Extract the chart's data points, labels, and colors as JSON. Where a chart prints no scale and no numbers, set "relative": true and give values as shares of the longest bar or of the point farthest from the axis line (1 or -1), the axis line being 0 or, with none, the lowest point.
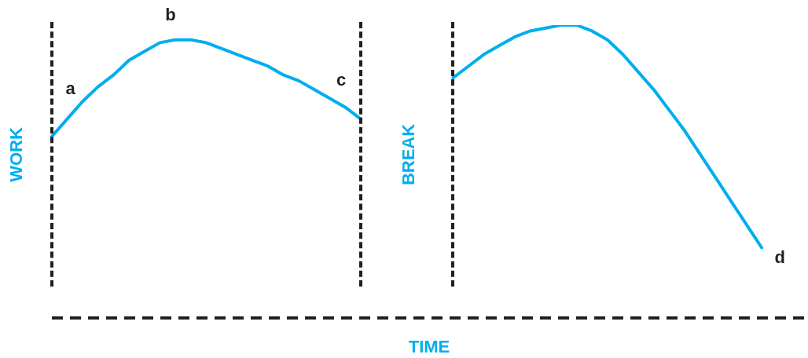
{
  "chart_data": {
    "type": "line",
    "relative": true,
    "ylabel": "WORK",
    "xlabel": "TIME",
    "legend": false,
    "marker": "none",
    "line_style": "solid",
    "categories": [
      null,
      null,
      null,
      null,
      null,
      null,
      null,
      null,
      null,
      null,
      null,
      null,
      null,
      null,
      null,
      null,
      null,
      null,
      null,
      null,
      null,
      null,
      null,
      null,
      null,
      null,
      null,
      null,
      null,
      null,
      null,
      null,
      null,
      null,
      null,
      null,
      null,
      null,
      null,
      null,
      null,
      null,
      null,
      null,
      null,
      null,
      null,
      null,
      null,
      null
    ],
    "series": [
      {
        "color": "#00aeef",
        "values": [
          0.62,
          0.68,
          0.74,
          0.79,
          0.83,
          0.88,
          0.91,
          0.94,
          0.95,
          0.95,
          0.94,
          0.92,
          0.9,
          0.88,
          0.86,
          0.83,
          0.81,
          0.78,
          0.75,
          0.72,
          0.68,
          null,
          null,
          null,
          null,
          null,
          null,
          null,
          null,
          null,
          null,
          null,
          null,
          null,
          null,
          null,
          null,
          null,
          null,
          null,
          null,
          null,
          null,
          null,
          null,
          null,
          null,
          null,
          null,
          null
        ]
      },
      {
        "color": "#00aeef",
        "values": [
          null,
          null,
          null,
          null,
          null,
          null,
          null,
          null,
          null,
          null,
          null,
          null,
          null,
          null,
          null,
          null,
          null,
          null,
          null,
          null,
          null,
          null,
          null,
          null,
          null,
          null,
          0.82,
          0.86,
          0.9,
          0.93,
          0.96,
          0.98,
          0.99,
          1.0,
          1.0,
          0.98,
          0.95,
          0.9,
          0.84,
          0.78,
          0.71,
          0.64,
          0.56,
          0.48,
          0.4,
          0.32,
          0.24,
          null,
          null,
          null
        ]
      }
    ],
    "annotations": [
      "a",
      "b",
      "c",
      "BREAK",
      "d"
    ]
  }
}
